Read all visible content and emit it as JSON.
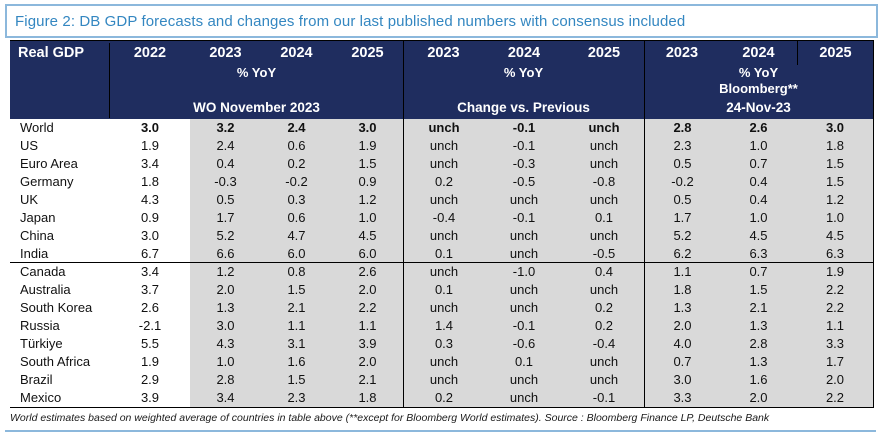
{
  "figure": {
    "title": "Figure 2: DB GDP forecasts and changes from our last published numbers with consensus included"
  },
  "colors": {
    "header_navy": "#1f2d5f",
    "band_gray": "#d9d9d9",
    "title_blue": "#3487c1",
    "rule_blue": "#8cb8dc"
  },
  "table": {
    "corner_label": "Real GDP",
    "groups": [
      {
        "years": [
          "2022",
          "2023",
          "2024",
          "2025"
        ],
        "unit": "% YoY",
        "label": "WO November 2023"
      },
      {
        "years": [
          "2023",
          "2024",
          "2025"
        ],
        "unit": "% YoY",
        "label": "Change vs. Previous"
      },
      {
        "years": [
          "2023",
          "2024",
          "2025"
        ],
        "unit": "% YoY",
        "sublabel": "Bloomberg**",
        "label": "24-Nov-23"
      }
    ]
  },
  "footer": {
    "note": "World estimates based on weighted average of countries in table above (**except for Bloomberg World estimates). Source : Bloomberg Finance LP, Deutsche Bank"
  },
  "chart_data": {
    "type": "table",
    "title": "Figure 2: DB GDP forecasts and changes from our last published numbers with consensus included",
    "unit": "% YoY",
    "column_groups": [
      {
        "label": "WO November 2023",
        "unit": "% YoY",
        "columns": [
          "2022",
          "2023",
          "2024",
          "2025"
        ]
      },
      {
        "label": "Change vs. Previous",
        "unit": "% YoY",
        "columns": [
          "2023",
          "2024",
          "2025"
        ]
      },
      {
        "label": "Bloomberg** 24-Nov-23",
        "unit": "% YoY",
        "columns": [
          "2023",
          "2024",
          "2025"
        ]
      }
    ],
    "rows": [
      {
        "name": "World",
        "bold": true,
        "values": [
          "3.0",
          "3.2",
          "2.4",
          "3.0",
          "unch",
          "-0.1",
          "unch",
          "2.8",
          "2.6",
          "3.0"
        ]
      },
      {
        "name": "US",
        "values": [
          "1.9",
          "2.4",
          "0.6",
          "1.9",
          "unch",
          "-0.1",
          "unch",
          "2.3",
          "1.0",
          "1.8"
        ]
      },
      {
        "name": "Euro Area",
        "values": [
          "3.4",
          "0.4",
          "0.2",
          "1.5",
          "unch",
          "-0.3",
          "unch",
          "0.5",
          "0.7",
          "1.5"
        ]
      },
      {
        "name": "Germany",
        "values": [
          "1.8",
          "-0.3",
          "-0.2",
          "0.9",
          "0.2",
          "-0.5",
          "-0.8",
          "-0.2",
          "0.4",
          "1.5"
        ]
      },
      {
        "name": "UK",
        "values": [
          "4.3",
          "0.5",
          "0.3",
          "1.2",
          "unch",
          "unch",
          "unch",
          "0.5",
          "0.4",
          "1.2"
        ]
      },
      {
        "name": "Japan",
        "values": [
          "0.9",
          "1.7",
          "0.6",
          "1.0",
          "-0.4",
          "-0.1",
          "0.1",
          "1.7",
          "1.0",
          "1.0"
        ]
      },
      {
        "name": "China",
        "values": [
          "3.0",
          "5.2",
          "4.7",
          "4.5",
          "unch",
          "unch",
          "unch",
          "5.2",
          "4.5",
          "4.5"
        ]
      },
      {
        "name": "India",
        "separator_after": true,
        "values": [
          "6.7",
          "6.6",
          "6.0",
          "6.0",
          "0.1",
          "unch",
          "-0.5",
          "6.2",
          "6.3",
          "6.3"
        ]
      },
      {
        "name": "Canada",
        "values": [
          "3.4",
          "1.2",
          "0.8",
          "2.6",
          "unch",
          "-1.0",
          "0.4",
          "1.1",
          "0.7",
          "1.9"
        ]
      },
      {
        "name": "Australia",
        "values": [
          "3.7",
          "2.0",
          "1.5",
          "2.0",
          "0.1",
          "unch",
          "unch",
          "1.8",
          "1.5",
          "2.2"
        ]
      },
      {
        "name": "South Korea",
        "values": [
          "2.6",
          "1.3",
          "2.1",
          "2.2",
          "unch",
          "unch",
          "0.2",
          "1.3",
          "2.1",
          "2.2"
        ]
      },
      {
        "name": "Russia",
        "values": [
          "-2.1",
          "3.0",
          "1.1",
          "1.1",
          "1.4",
          "-0.1",
          "0.2",
          "2.0",
          "1.3",
          "1.1"
        ]
      },
      {
        "name": "Türkiye",
        "values": [
          "5.5",
          "4.3",
          "3.1",
          "3.9",
          "0.3",
          "-0.6",
          "-0.4",
          "4.0",
          "2.8",
          "3.3"
        ]
      },
      {
        "name": "South Africa",
        "values": [
          "1.9",
          "1.0",
          "1.6",
          "2.0",
          "unch",
          "0.1",
          "unch",
          "0.7",
          "1.3",
          "1.7"
        ]
      },
      {
        "name": "Brazil",
        "values": [
          "2.9",
          "2.8",
          "1.5",
          "2.1",
          "unch",
          "unch",
          "unch",
          "3.0",
          "1.6",
          "2.0"
        ]
      },
      {
        "name": "Mexico",
        "values": [
          "3.9",
          "3.4",
          "2.3",
          "1.8",
          "0.2",
          "unch",
          "-0.1",
          "3.3",
          "2.0",
          "2.2"
        ]
      }
    ]
  }
}
